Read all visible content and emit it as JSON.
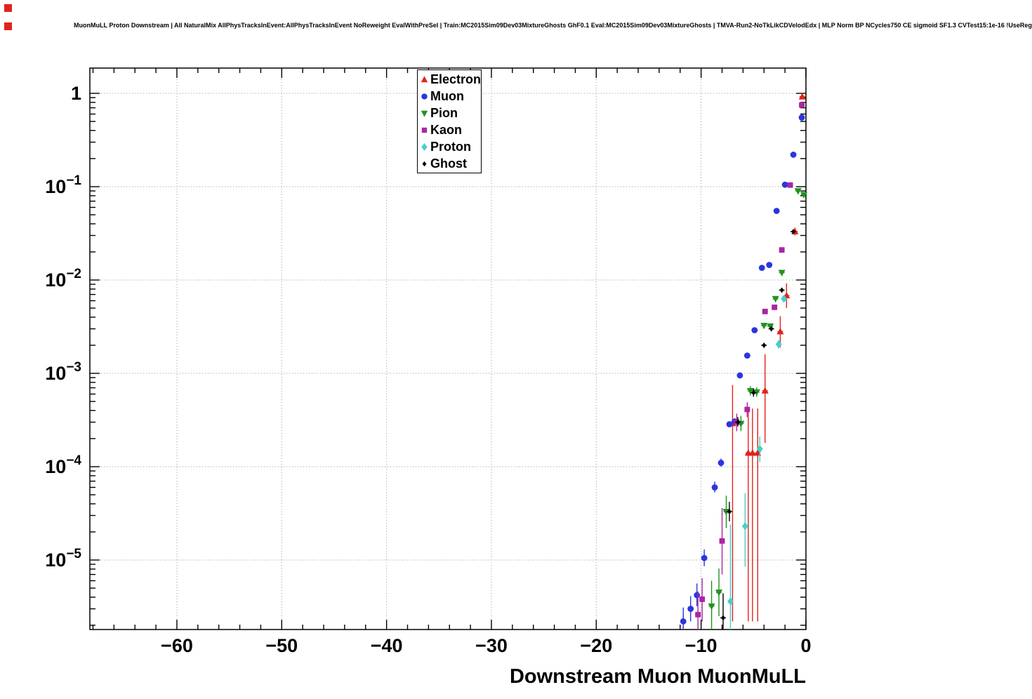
{
  "title": "MuonMuLL Proton Downstream | All NaturalMix AllPhysTracksInEvent:AllPhysTracksInEvent NoReweight EvalWithPreSel | Train:MC2015Sim09Dev03MixtureGhosts GhF0.1 Eval:MC2015Sim09Dev03MixtureGhosts | TMVA-Run2-NoTkLikCDVelodEdx | MLP Norm BP NCycles750 CE sigmoid SF1.3 CVTest15:1e-16 !UseReg",
  "canvas": {
    "background": "#ffffff",
    "corner_marker_color": "#e0231c"
  },
  "chart_data": {
    "type": "scatter",
    "title": "",
    "xlabel": "Downstream Muon MuonMuLL",
    "ylabel": "",
    "y_scale": "log",
    "x_range": [
      -68.3,
      0
    ],
    "y_range": [
      1.8e-06,
      1.865
    ],
    "x_ticks": [
      -60,
      -50,
      -40,
      -30,
      -20,
      -10,
      0
    ],
    "x_minor_step": 2,
    "y_tick_exponents": [
      0,
      -1,
      -2,
      -3,
      -4,
      -5
    ],
    "grid": true,
    "grid_color": "#9a9a9a",
    "legend_position": "top-center",
    "x_error_halfwidth": 0.27,
    "series": [
      {
        "name": "Electron",
        "color": "#e0231c",
        "marker": "triangle-up",
        "points": [
          [
            -7.0,
            0.00029,
            2.2e-06,
            0.00075
          ],
          [
            -5.5,
            0.00014,
            2.2e-06,
            0.00042
          ],
          [
            -5.1,
            0.00014,
            2.2e-06,
            0.00042
          ],
          [
            -4.6,
            0.00014,
            2.2e-06,
            0.00042
          ],
          [
            -3.9,
            0.00065,
            0.00018,
            0.0016
          ],
          [
            -2.45,
            0.0028,
            0.0019,
            0.0041
          ],
          [
            -1.85,
            0.0068,
            0.005,
            0.0092
          ],
          [
            -1.05,
            0.033,
            0.03,
            0.0365
          ],
          [
            -0.35,
            0.92,
            0.89,
            0.95
          ]
        ]
      },
      {
        "name": "Muon",
        "color": "#2a35e0",
        "marker": "circle",
        "points": [
          [
            -11.7,
            2.2e-06,
            1.6e-06,
            3.1e-06
          ],
          [
            -11.0,
            3e-06,
            2.2e-06,
            4.1e-06
          ],
          [
            -10.4,
            4.2e-06,
            3.2e-06,
            5.6e-06
          ],
          [
            -9.7,
            1.05e-05,
            8.6e-06,
            1.3e-05
          ],
          [
            -8.7,
            6e-05,
            5.3e-05,
            6.9e-05
          ],
          [
            -8.1,
            0.00011,
            0.0001,
            0.000122
          ],
          [
            -7.3,
            0.000285,
            0.000265,
            0.000305
          ],
          [
            -6.8,
            0.000305,
            0.000285,
            0.000325
          ],
          [
            -6.3,
            0.00095,
            0.00091,
            0.00099
          ],
          [
            -5.6,
            0.00155,
            0.0015,
            0.0016
          ],
          [
            -4.9,
            0.0029,
            0.00283,
            0.00297
          ],
          [
            -4.2,
            0.0135,
            0.0132,
            0.0138
          ],
          [
            -3.5,
            0.0145,
            0.0142,
            0.0148
          ],
          [
            -2.8,
            0.055,
            0.0543,
            0.0557
          ],
          [
            -2.0,
            0.105,
            0.1035,
            0.1065
          ],
          [
            -1.2,
            0.22,
            0.2175,
            0.2225
          ],
          [
            -0.4,
            0.55,
            0.5465,
            0.5535
          ]
        ]
      },
      {
        "name": "Pion",
        "color": "#209320",
        "marker": "triangle-down",
        "points": [
          [
            -9.0,
            3.2e-06,
            1.7e-06,
            6e-06
          ],
          [
            -8.3,
            4.5e-06,
            2.5e-06,
            8.1e-06
          ],
          [
            -7.6,
            3.3e-05,
            2.2e-05,
            4.9e-05
          ],
          [
            -6.2,
            0.00029,
            0.00024,
            0.00035
          ],
          [
            -5.3,
            0.00065,
            0.00058,
            0.00073
          ],
          [
            -4.7,
            0.00063,
            0.00056,
            0.00071
          ],
          [
            -4.0,
            0.00325,
            0.0031,
            0.0034
          ],
          [
            -3.4,
            0.0032,
            0.00305,
            0.00335
          ],
          [
            -2.9,
            0.0063,
            0.0061,
            0.0065
          ],
          [
            -2.3,
            0.012,
            0.0117,
            0.0123
          ],
          [
            -0.75,
            0.09,
            0.0878,
            0.0922
          ],
          [
            -0.2,
            0.082,
            0.0801,
            0.0839
          ]
        ]
      },
      {
        "name": "Kaon",
        "color": "#aa26a2",
        "marker": "square",
        "points": [
          [
            -10.3,
            2.6e-06,
            1.4e-06,
            4.6e-06
          ],
          [
            -9.9,
            3.8e-06,
            2.2e-06,
            6.4e-06
          ],
          [
            -8.0,
            1.6e-05,
            7e-06,
            3.6e-05
          ],
          [
            -6.6,
            0.0003,
            0.00024,
            0.00037
          ],
          [
            -5.6,
            0.00041,
            0.00034,
            0.00049
          ],
          [
            -3.9,
            0.0046,
            0.00442,
            0.00478
          ],
          [
            -3.0,
            0.0051,
            0.00492,
            0.00528
          ],
          [
            -2.3,
            0.021,
            0.0206,
            0.0214
          ],
          [
            -1.5,
            0.104,
            0.1022,
            0.1058
          ],
          [
            -0.4,
            0.75,
            0.744,
            0.756
          ]
        ]
      },
      {
        "name": "Proton",
        "color": "#45cfcb",
        "marker": "diamond",
        "points": [
          [
            -7.2,
            3.6e-06,
            1.8e-06,
            2.4e-05
          ],
          [
            -5.8,
            2.3e-05,
            8.5e-06,
            5.2e-05
          ],
          [
            -4.4,
            0.000155,
            0.000112,
            0.00021
          ],
          [
            -2.6,
            0.00205,
            0.00184,
            0.00228
          ],
          [
            -2.1,
            0.0063,
            0.00592,
            0.0067
          ]
        ]
      },
      {
        "name": "Ghost",
        "color": "#000000",
        "marker": "diamond-small",
        "points": [
          [
            -7.9,
            2.4e-06,
            1.3e-06,
            4.4e-06
          ],
          [
            -7.3,
            3.3e-05,
            2.6e-05,
            4.2e-05
          ],
          [
            -6.5,
            0.0003,
            0.00027,
            0.00034
          ],
          [
            -5.0,
            0.00062,
            0.00056,
            0.00069
          ],
          [
            -4.0,
            0.002,
            0.0019,
            0.0021
          ],
          [
            -3.3,
            0.003,
            0.00286,
            0.00314
          ],
          [
            -2.3,
            0.0078,
            0.0075,
            0.0081
          ],
          [
            -1.2,
            0.033,
            0.0321,
            0.0339
          ]
        ]
      }
    ]
  }
}
